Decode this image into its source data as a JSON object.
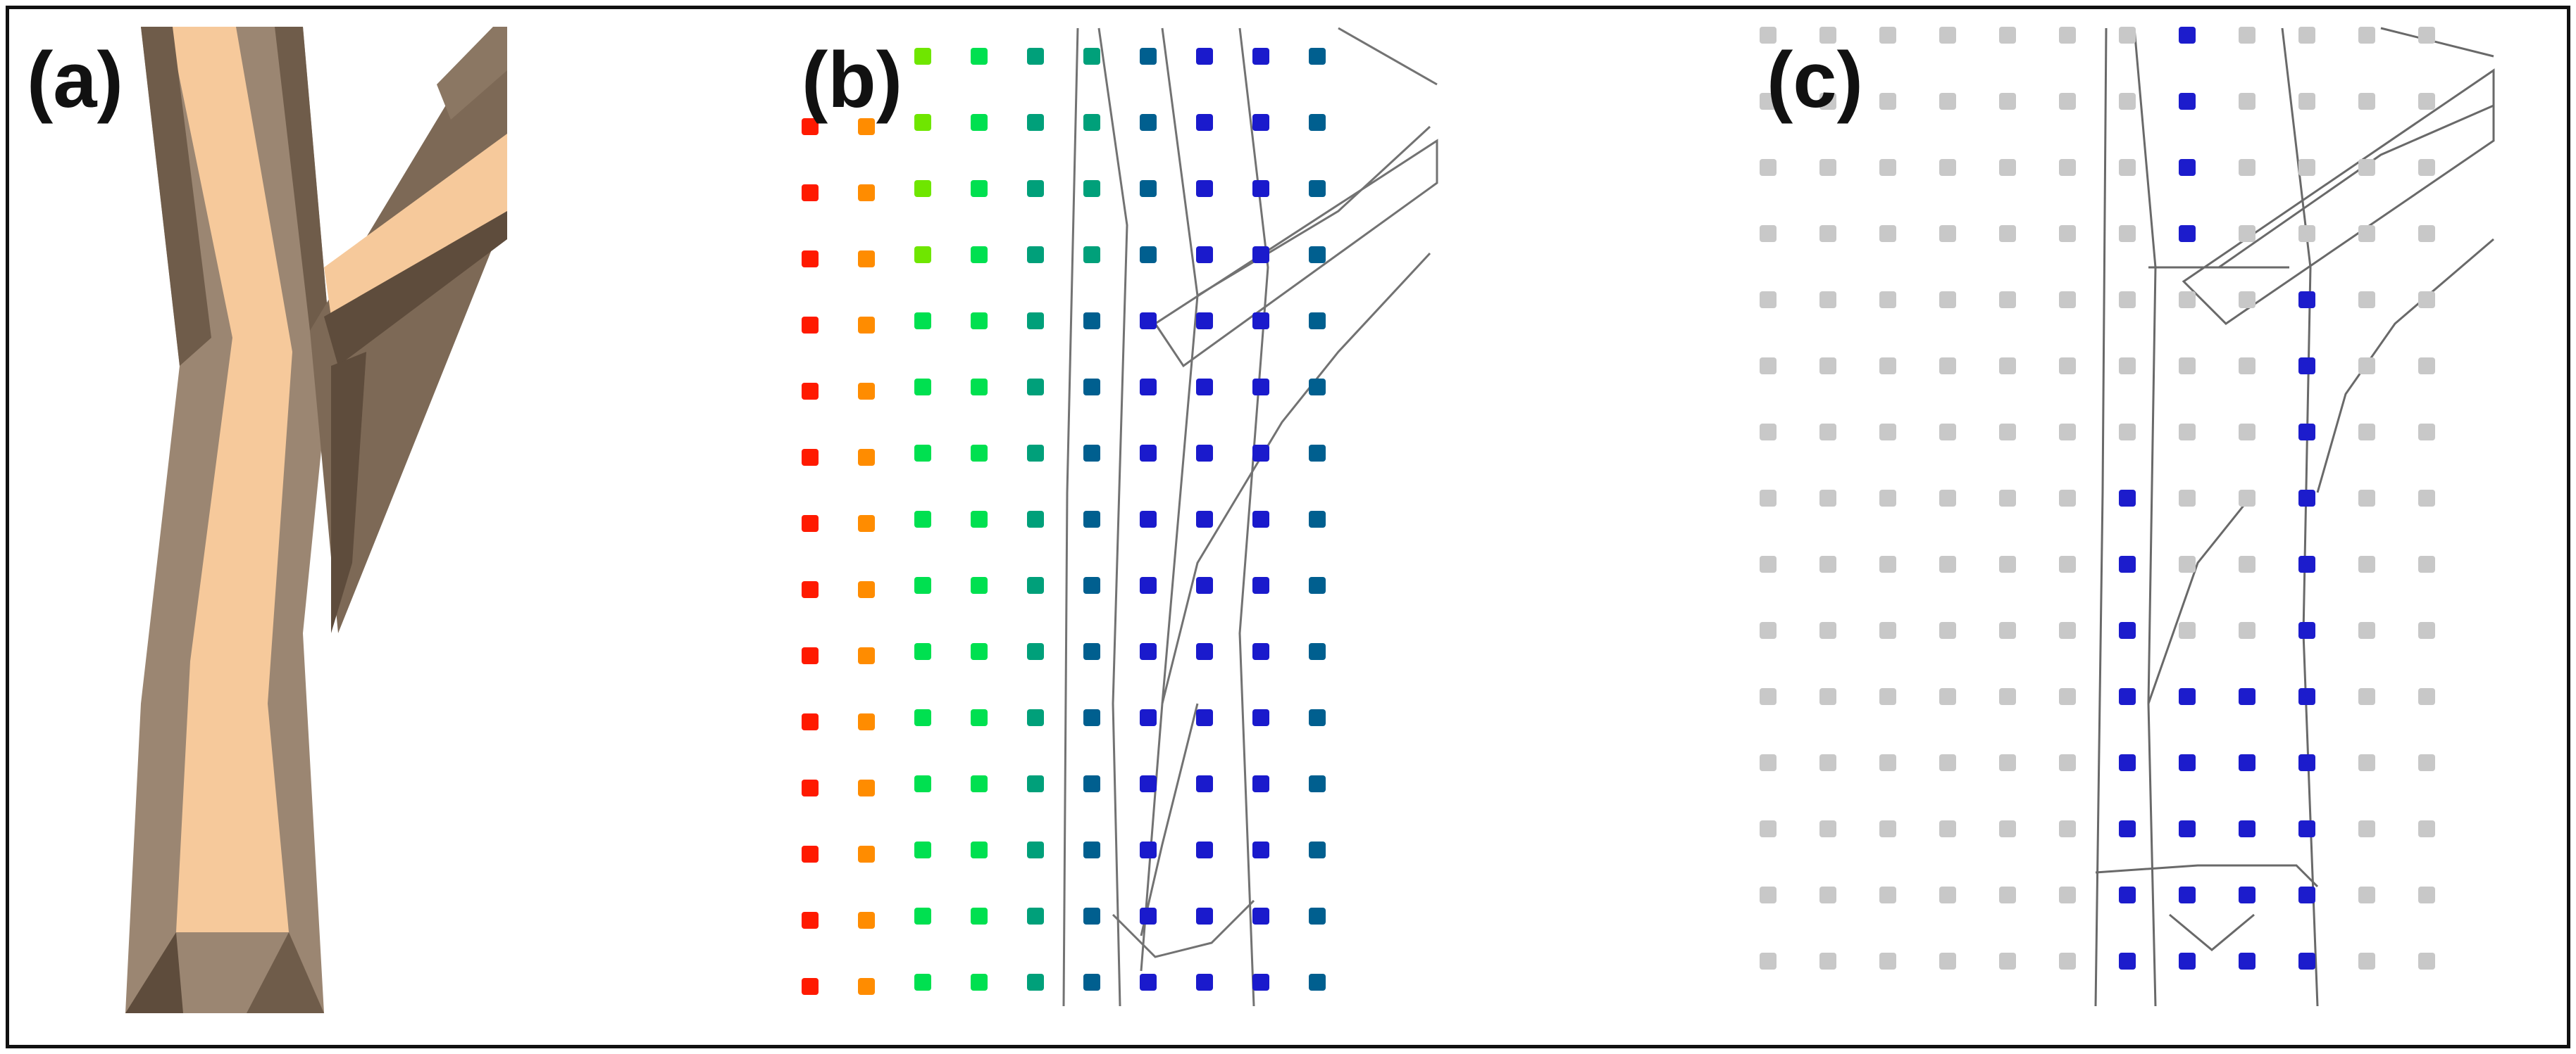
{
  "figure": {
    "panels": [
      {
        "label": "(a)",
        "content": "tree-branch-polygon-model"
      },
      {
        "label": "(b)",
        "content": "colored-sample-point-grid-over-wireframe"
      },
      {
        "label": "(c)",
        "content": "selected-sample-points-over-wireframe"
      }
    ]
  },
  "colors": {
    "bark_dark": "#6f5c4a",
    "bark_mid": "#a08b77",
    "bark_light": "#f6c99b",
    "point_blue": "#1c1ccc",
    "point_gray": "#c8c8c8",
    "wire": "#444444",
    "gradient": [
      "#ff1a00",
      "#ff8c00",
      "#cfe600",
      "#6fe600",
      "#00e050",
      "#00a07a",
      "#005f8f",
      "#1a1acc"
    ]
  }
}
